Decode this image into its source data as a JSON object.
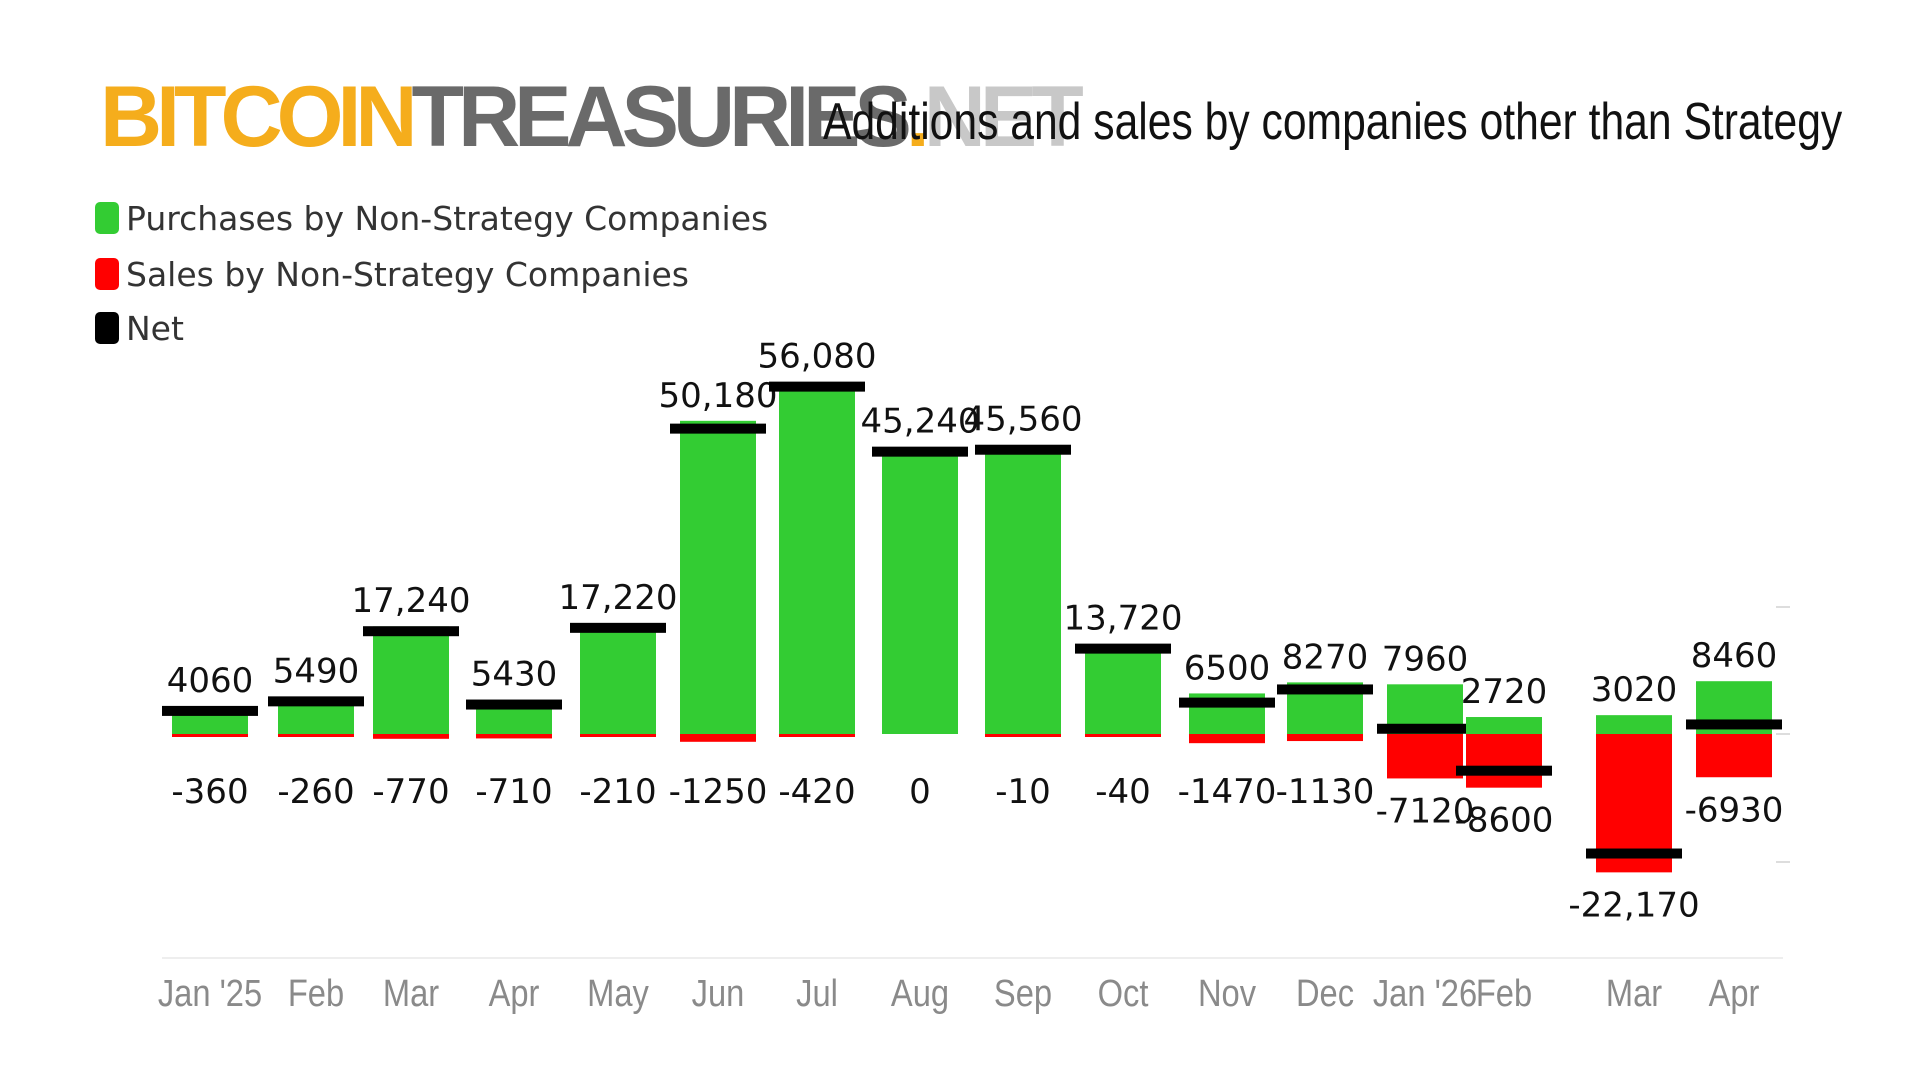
{
  "header": {
    "brand_part1": "BITCOIN",
    "brand_part2": "TREASURIES",
    "brand_part3": ".",
    "brand_part4": "NET",
    "title": "Additions and sales by companies other than Strategy"
  },
  "colors": {
    "brand_orange": "#f5ad1c",
    "brand_gray": "#6a6a6a",
    "brand_light_gray": "#c8c8c8",
    "purchases": "#33cc33",
    "sales": "#ff0000",
    "net": "#000000",
    "axis_text": "#8a8a8a"
  },
  "legend": [
    {
      "label": "Purchases by Non-Strategy Companies",
      "color": "#33cc33"
    },
    {
      "label": "Sales by Non-Strategy Companies",
      "color": "#ff0000"
    },
    {
      "label": "Net",
      "color": "#000000"
    }
  ],
  "chart_data": {
    "type": "bar",
    "title": "Additions and sales by companies other than Strategy",
    "categories": [
      "Jan '25",
      "Feb",
      "Mar",
      "Apr",
      "May",
      "Jun",
      "Jul",
      "Aug",
      "Sep",
      "Oct",
      "Nov",
      "Dec",
      "Jan '26",
      "Feb",
      "Mar",
      "Apr"
    ],
    "series": [
      {
        "name": "Purchases by Non-Strategy Companies",
        "values": [
          4060,
          5490,
          17240,
          5430,
          17220,
          50180,
          56080,
          45240,
          45560,
          13720,
          6500,
          8270,
          7960,
          2720,
          3020,
          8460
        ]
      },
      {
        "name": "Sales by Non-Strategy Companies",
        "values": [
          -360,
          -260,
          -770,
          -710,
          -210,
          -1250,
          -420,
          0,
          -10,
          -40,
          -1470,
          -1130,
          -7120,
          -8600,
          -22170,
          -6930
        ]
      },
      {
        "name": "Net",
        "values": [
          3700,
          5230,
          16470,
          4720,
          17010,
          48930,
          55660,
          45240,
          45550,
          13680,
          5030,
          7140,
          840,
          -5880,
          -19150,
          1530
        ]
      }
    ],
    "positive_labels": [
      "4060",
      "5490",
      "17,240",
      "5430",
      "17,220",
      "50,180",
      "56,080",
      "45,240",
      "45,560",
      "13,720",
      "6500",
      "8270",
      "7960",
      "2720",
      "3020",
      "8460"
    ],
    "negative_labels": [
      "-360",
      "-260",
      "-770",
      "-710",
      "-210",
      "-1250",
      "-420",
      "0",
      "-10",
      "-40",
      "-1470",
      "-1130",
      "-7120",
      "-8600",
      "-22,170",
      "-6930"
    ],
    "ylim": [
      -23000,
      57000
    ],
    "grid": false,
    "legend_position": "top-left"
  }
}
